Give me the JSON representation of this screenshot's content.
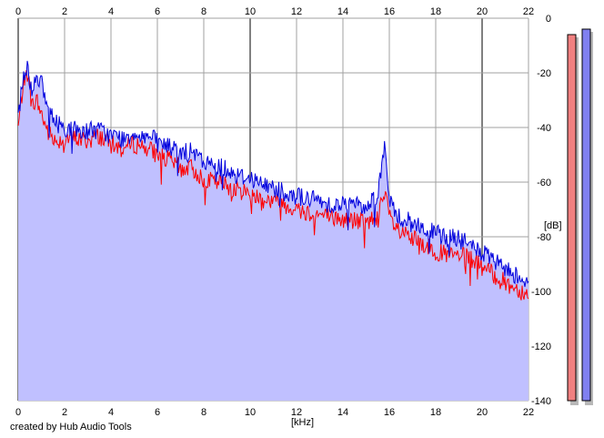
{
  "credit": "created by Hub Audio Tools",
  "chart_data": {
    "type": "area",
    "xlabel": "[kHz]",
    "ylabel": "[dB]",
    "xlim": [
      0,
      22
    ],
    "ylim": [
      -140,
      0
    ],
    "x_ticks": [
      0,
      2,
      4,
      6,
      8,
      10,
      12,
      14,
      16,
      18,
      20,
      22
    ],
    "y_ticks": [
      0,
      -20,
      -40,
      -60,
      -80,
      -100,
      -120,
      -140
    ],
    "y_tick_labels": [
      "0",
      "-20",
      "-40",
      "-60",
      "-80",
      "-100",
      "-120",
      "-140"
    ],
    "grid": true,
    "colors": {
      "fill": "#c0c0ff",
      "series_red": "#ff0000",
      "series_blue": "#0000dd",
      "grid": "#a0a0a0",
      "meter_red": "#f08080",
      "meter_blue": "#8080f0"
    },
    "series": [
      {
        "color": "red",
        "x": [
          0.0,
          0.2,
          0.4,
          0.6,
          0.8,
          1.0,
          1.3,
          1.6,
          2.0,
          2.5,
          3.0,
          3.5,
          4.0,
          4.5,
          5.0,
          5.5,
          6.0,
          6.5,
          7.0,
          7.5,
          8.0,
          8.5,
          9.0,
          9.5,
          10.0,
          10.5,
          11.0,
          11.5,
          12.0,
          12.5,
          13.0,
          13.5,
          14.0,
          14.5,
          15.0,
          15.5,
          15.8,
          16.0,
          16.2,
          16.5,
          17.0,
          17.5,
          18.0,
          18.5,
          19.0,
          19.5,
          20.0,
          20.5,
          21.0,
          21.5,
          22.0
        ],
        "values": [
          -40,
          -25,
          -20,
          -32,
          -30,
          -35,
          -42,
          -45,
          -44,
          -44,
          -45,
          -43,
          -46,
          -48,
          -46,
          -47,
          -50,
          -52,
          -55,
          -55,
          -59,
          -60,
          -61,
          -63,
          -64,
          -66,
          -67,
          -68,
          -70,
          -71,
          -72,
          -73,
          -74,
          -74,
          -75,
          -72,
          -65,
          -72,
          -76,
          -79,
          -81,
          -83,
          -85,
          -87,
          -87,
          -88,
          -91,
          -94,
          -97,
          -99,
          -101
        ]
      },
      {
        "color": "blue",
        "x": [
          0.0,
          0.2,
          0.4,
          0.6,
          0.8,
          1.0,
          1.3,
          1.6,
          2.0,
          2.5,
          3.0,
          3.5,
          4.0,
          4.5,
          5.0,
          5.5,
          6.0,
          6.5,
          7.0,
          7.5,
          8.0,
          8.5,
          9.0,
          9.5,
          10.0,
          10.5,
          11.0,
          11.5,
          12.0,
          12.5,
          13.0,
          13.5,
          14.0,
          14.5,
          15.0,
          15.5,
          15.8,
          16.0,
          16.2,
          16.5,
          17.0,
          17.5,
          18.0,
          18.5,
          19.0,
          19.5,
          20.0,
          20.5,
          21.0,
          21.5,
          22.0
        ],
        "values": [
          -36,
          -22,
          -18,
          -27,
          -20,
          -24,
          -34,
          -38,
          -40,
          -41,
          -41,
          -41,
          -43,
          -44,
          -42,
          -43,
          -45,
          -47,
          -49,
          -49,
          -53,
          -54,
          -55,
          -58,
          -58,
          -61,
          -62,
          -63,
          -65,
          -66,
          -67,
          -68,
          -68,
          -68,
          -69,
          -64,
          -47,
          -66,
          -71,
          -73,
          -75,
          -77,
          -79,
          -80,
          -81,
          -83,
          -86,
          -89,
          -92,
          -94,
          -96
        ]
      }
    ],
    "meters": [
      {
        "color": "red",
        "level_db": -6
      },
      {
        "color": "blue",
        "level_db": -4
      }
    ]
  }
}
